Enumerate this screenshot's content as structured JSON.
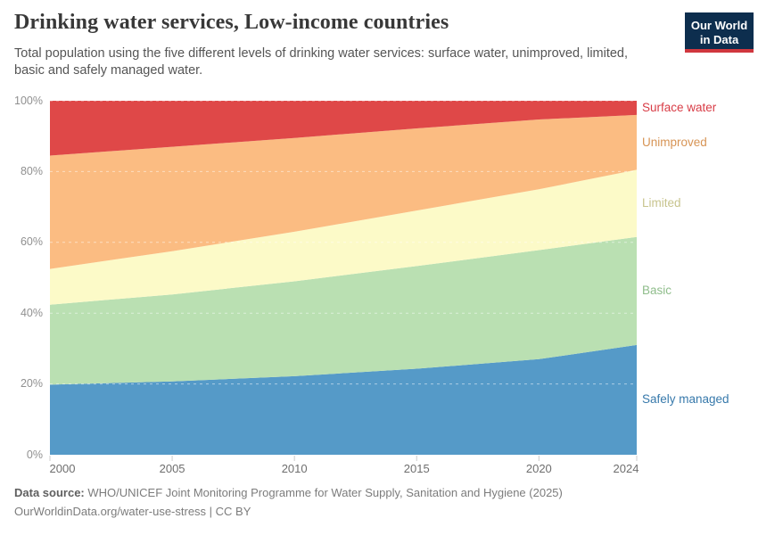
{
  "header": {
    "title": "Drinking water services, Low-income countries",
    "subtitle": "Total population using the five different levels of drinking water services: surface water, unimproved, limited, basic and safely managed water.",
    "logo": {
      "line1": "Our World",
      "line2": "in Data",
      "bg_color": "#0d2e4e",
      "accent_color": "#d0373e"
    }
  },
  "footer": {
    "source_label": "Data source:",
    "source_text": " WHO/UNICEF Joint Monitoring Programme for Water Supply, Sanitation and Hygiene (2025)",
    "url": "OurWorldinData.org/water-use-stress",
    "separator": " | ",
    "license": "CC BY"
  },
  "chart_data": {
    "type": "area",
    "stacked": true,
    "unit": "%",
    "title": "Drinking water services, Low-income countries",
    "xlabel": "",
    "ylabel": "",
    "ylim": [
      0,
      100
    ],
    "grid": "dashed, drawn over areas at 20% steps",
    "legend_position": "right edge, one label per band",
    "x": [
      2000,
      2005,
      2010,
      2015,
      2020,
      2024
    ],
    "x_tick_labels": [
      "2000",
      "2005",
      "2010",
      "2015",
      "2020",
      "2024"
    ],
    "y_tick_values": [
      0,
      20,
      40,
      60,
      80,
      100
    ],
    "y_tick_labels": [
      "0%",
      "20%",
      "40%",
      "60%",
      "80%",
      "100%"
    ],
    "gridline_values": [
      20,
      40,
      60,
      80,
      100
    ],
    "series_note": "bottom of stack listed first; values are % of population",
    "series": [
      {
        "name": "Safely managed",
        "values": [
          19.8,
          20.7,
          22.2,
          24.3,
          27.0,
          31.0
        ],
        "fill": "#559ac8",
        "label_color": "#3779ab"
      },
      {
        "name": "Basic",
        "values": [
          22.6,
          24.6,
          26.8,
          29.0,
          30.8,
          30.5
        ],
        "fill": "#bae0b2",
        "label_color": "#8fbd8b"
      },
      {
        "name": "Limited",
        "values": [
          10.1,
          12.2,
          14.0,
          15.7,
          17.2,
          19.0
        ],
        "fill": "#fcfac8",
        "label_color": "#c8c48e"
      },
      {
        "name": "Unimproved",
        "values": [
          32.0,
          29.5,
          26.5,
          23.2,
          19.7,
          15.5
        ],
        "fill": "#fbbc82",
        "label_color": "#d79455"
      },
      {
        "name": "Surface water",
        "values": [
          15.5,
          13.0,
          10.5,
          7.8,
          5.3,
          4.0
        ],
        "fill": "#df4848",
        "label_color": "#d83c46"
      }
    ]
  }
}
